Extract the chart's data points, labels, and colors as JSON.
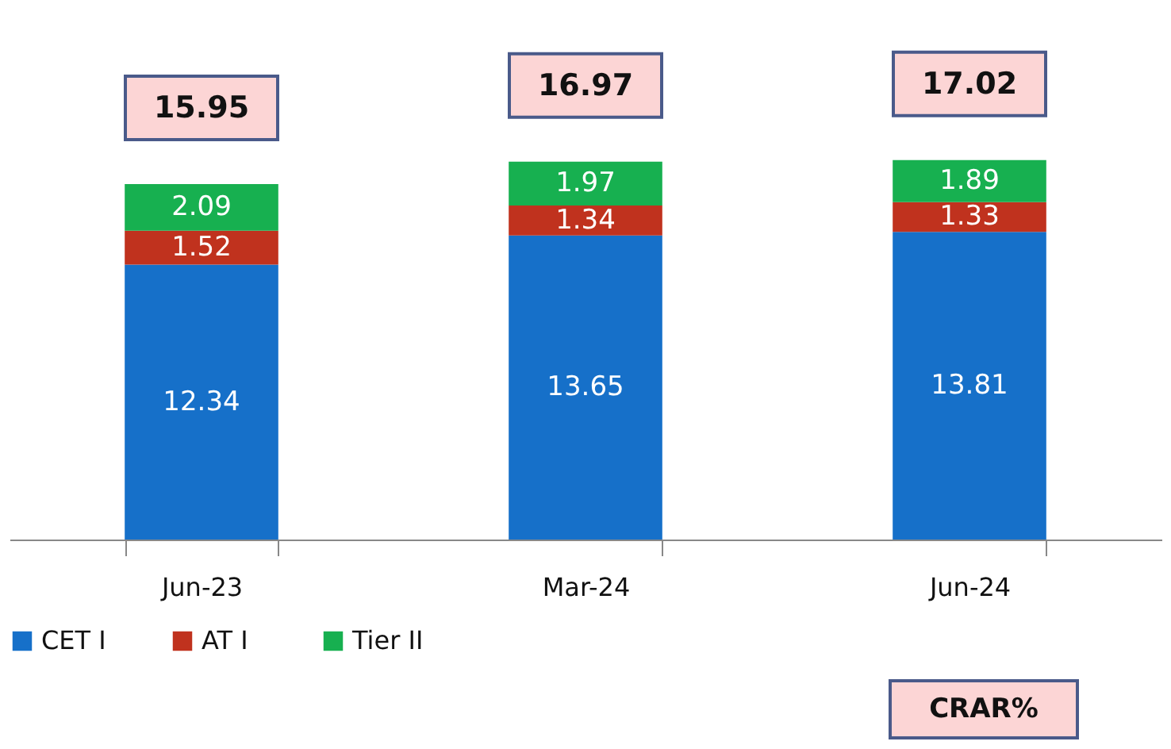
{
  "chart_data": {
    "type": "bar",
    "stacked": true,
    "categories": [
      "Jun-23",
      "Mar-24",
      "Jun-24"
    ],
    "series": [
      {
        "name": "CET I",
        "color": "#1670c9",
        "values": [
          12.34,
          13.65,
          13.81
        ]
      },
      {
        "name": "AT  I",
        "color": "#c0321e",
        "values": [
          1.52,
          1.34,
          1.33
        ]
      },
      {
        "name": "Tier II",
        "color": "#17b050",
        "values": [
          2.09,
          1.97,
          1.89
        ]
      }
    ],
    "data_labels": true,
    "totals": [
      "15.95",
      "16.97",
      "17.02"
    ],
    "legend": "bottom",
    "annotations": [
      "CRAR%"
    ]
  }
}
